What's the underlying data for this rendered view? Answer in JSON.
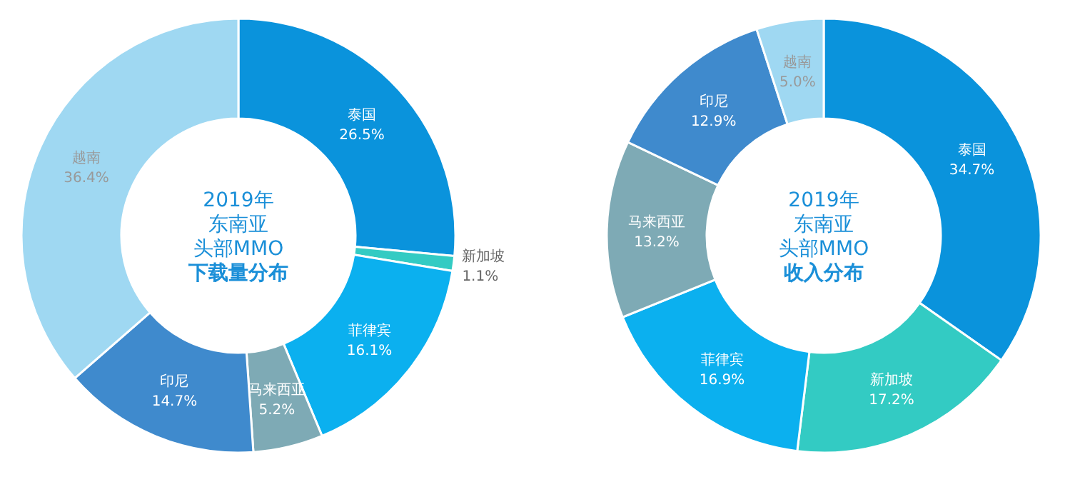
{
  "chart_data": [
    {
      "type": "donut",
      "title": "2019年东南亚头部MMO",
      "subtitle": "下载量分布",
      "categories": [
        "泰国",
        "新加坡",
        "菲律宾",
        "马来西亚",
        "印尼",
        "越南"
      ],
      "values": [
        26.5,
        1.1,
        16.1,
        5.2,
        14.7,
        36.4
      ],
      "value_labels": [
        "26.5%",
        "1.1%",
        "16.1%",
        "5.2%",
        "14.7%",
        "36.4%"
      ],
      "colors": [
        "#0a93dc",
        "#33cbc3",
        "#0bb0ef",
        "#7eaab5",
        "#3f8acd",
        "#9fd8f2"
      ],
      "legend": false
    },
    {
      "type": "donut",
      "title": "2019年东南亚头部MMO",
      "subtitle": "收入分布",
      "categories": [
        "泰国",
        "新加坡",
        "菲律宾",
        "马来西亚",
        "印尼",
        "越南"
      ],
      "values": [
        34.7,
        17.2,
        16.9,
        13.2,
        12.9,
        5.0
      ],
      "value_labels": [
        "34.7%",
        "17.2%",
        "16.9%",
        "13.2%",
        "12.9%",
        "5.0%"
      ],
      "colors": [
        "#0a93dc",
        "#33cbc3",
        "#0bb0ef",
        "#7eaab5",
        "#3f8acd",
        "#9fd8f2"
      ],
      "legend": false
    }
  ]
}
